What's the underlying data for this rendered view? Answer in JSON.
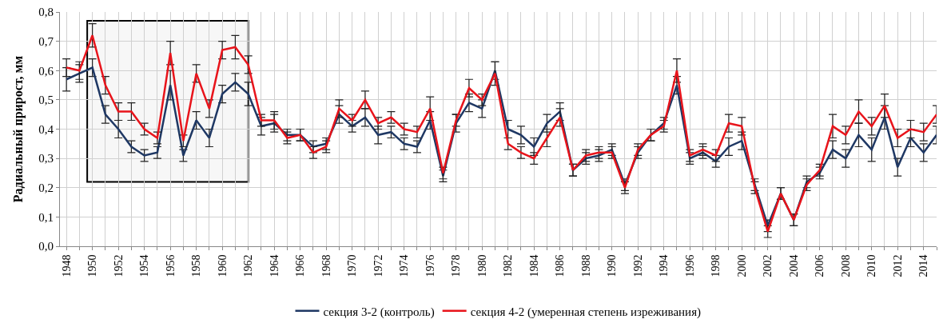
{
  "chart_data": {
    "type": "line",
    "ylabel": "Радиальный прирост, мм",
    "x": [
      1948,
      1949,
      1950,
      1951,
      1952,
      1953,
      1954,
      1955,
      1956,
      1957,
      1958,
      1959,
      1960,
      1961,
      1962,
      1963,
      1964,
      1965,
      1966,
      1967,
      1968,
      1969,
      1970,
      1971,
      1972,
      1973,
      1974,
      1975,
      1976,
      1977,
      1978,
      1979,
      1980,
      1981,
      1982,
      1983,
      1984,
      1985,
      1986,
      1987,
      1988,
      1989,
      1990,
      1991,
      1992,
      1993,
      1994,
      1995,
      1996,
      1997,
      1998,
      1999,
      2000,
      2001,
      2002,
      2003,
      2004,
      2005,
      2006,
      2007,
      2008,
      2009,
      2010,
      2011,
      2012,
      2013,
      2014,
      2015
    ],
    "series": [
      {
        "name": "секция 3-2 (контроль)",
        "color": "#1f3864",
        "values": [
          0.57,
          0.59,
          0.61,
          0.45,
          0.4,
          0.34,
          0.31,
          0.32,
          0.55,
          0.31,
          0.43,
          0.37,
          0.52,
          0.56,
          0.52,
          0.41,
          0.42,
          0.38,
          0.38,
          0.34,
          0.35,
          0.45,
          0.41,
          0.44,
          0.38,
          0.39,
          0.35,
          0.34,
          0.43,
          0.24,
          0.42,
          0.49,
          0.47,
          0.6,
          0.4,
          0.38,
          0.34,
          0.42,
          0.46,
          0.26,
          0.3,
          0.31,
          0.33,
          0.21,
          0.32,
          0.38,
          0.42,
          0.55,
          0.3,
          0.32,
          0.29,
          0.34,
          0.36,
          0.21,
          0.07,
          0.18,
          0.09,
          0.22,
          0.25,
          0.33,
          0.3,
          0.38,
          0.33,
          0.44,
          0.27,
          0.37,
          0.32,
          0.38
        ],
        "errors": [
          0.04,
          0.03,
          0.03,
          0.03,
          0.03,
          0.02,
          0.02,
          0.02,
          0.05,
          0.02,
          0.03,
          0.03,
          0.03,
          0.03,
          0.04,
          0.03,
          0.03,
          0.02,
          0.02,
          0.02,
          0.02,
          0.03,
          0.02,
          0.03,
          0.03,
          0.02,
          0.02,
          0.02,
          0.03,
          0.02,
          0.03,
          0.03,
          0.03,
          0.03,
          0.03,
          0.03,
          0.03,
          0.03,
          0.03,
          0.02,
          0.02,
          0.02,
          0.02,
          0.02,
          0.02,
          0.02,
          0.02,
          0.03,
          0.02,
          0.02,
          0.02,
          0.03,
          0.03,
          0.02,
          0.02,
          0.02,
          0.02,
          0.02,
          0.02,
          0.03,
          0.03,
          0.04,
          0.04,
          0.04,
          0.03,
          0.03,
          0.03,
          0.03
        ]
      },
      {
        "name": "секция 4-2 (умеренная степень изреживания)",
        "color": "#e8141b",
        "values": [
          0.61,
          0.6,
          0.72,
          0.55,
          0.46,
          0.46,
          0.4,
          0.37,
          0.66,
          0.36,
          0.59,
          0.47,
          0.67,
          0.68,
          0.62,
          0.43,
          0.43,
          0.37,
          0.38,
          0.32,
          0.34,
          0.47,
          0.43,
          0.5,
          0.42,
          0.44,
          0.4,
          0.39,
          0.47,
          0.25,
          0.43,
          0.54,
          0.5,
          0.59,
          0.35,
          0.32,
          0.3,
          0.37,
          0.44,
          0.26,
          0.31,
          0.32,
          0.32,
          0.2,
          0.33,
          0.38,
          0.41,
          0.6,
          0.31,
          0.33,
          0.31,
          0.42,
          0.41,
          0.2,
          0.05,
          0.18,
          0.09,
          0.21,
          0.26,
          0.41,
          0.38,
          0.46,
          0.41,
          0.48,
          0.37,
          0.4,
          0.39,
          0.45
        ],
        "errors": [
          0.03,
          0.03,
          0.04,
          0.03,
          0.03,
          0.03,
          0.02,
          0.02,
          0.04,
          0.02,
          0.03,
          0.03,
          0.03,
          0.04,
          0.03,
          0.02,
          0.03,
          0.02,
          0.02,
          0.02,
          0.02,
          0.03,
          0.02,
          0.03,
          0.02,
          0.02,
          0.02,
          0.02,
          0.04,
          0.02,
          0.02,
          0.03,
          0.02,
          0.04,
          0.02,
          0.02,
          0.02,
          0.03,
          0.03,
          0.02,
          0.02,
          0.02,
          0.02,
          0.02,
          0.02,
          0.02,
          0.02,
          0.04,
          0.02,
          0.02,
          0.02,
          0.03,
          0.03,
          0.02,
          0.02,
          0.02,
          0.02,
          0.02,
          0.02,
          0.04,
          0.03,
          0.04,
          0.03,
          0.04,
          0.03,
          0.03,
          0.03,
          0.03
        ]
      }
    ],
    "bands": [
      {
        "axis": "x",
        "from": 1949.6,
        "to": 1962,
        "color": "#000000"
      }
    ],
    "ylim": [
      0,
      0.8
    ],
    "yticks": [
      {
        "value": 0,
        "label": "0,0"
      },
      {
        "value": 0.1,
        "label": "0,1"
      },
      {
        "value": 0.2,
        "label": "0,2"
      },
      {
        "value": 0.3,
        "label": "0,3"
      },
      {
        "value": 0.4,
        "label": "0,4"
      },
      {
        "value": 0.5,
        "label": "0,5"
      },
      {
        "value": 0.6,
        "label": "0,6"
      },
      {
        "value": 0.7,
        "label": "0,7"
      },
      {
        "value": 0.8,
        "label": "0,8"
      }
    ],
    "xlim": [
      1947.5,
      2015
    ],
    "xticks": [
      1948,
      {
        "value": 1949,
        "label": null
      },
      1950,
      {
        "value": 1951,
        "label": null
      },
      1952,
      {
        "value": 1953,
        "label": null
      },
      1954,
      {
        "value": 1955,
        "label": null
      },
      1956,
      {
        "value": 1957,
        "label": null
      },
      1958,
      {
        "value": 1959,
        "label": null
      },
      1960,
      {
        "value": 1961,
        "label": null
      },
      1962,
      {
        "value": 1963,
        "label": null
      },
      1964,
      {
        "value": 1965,
        "label": null
      },
      1966,
      {
        "value": 1967,
        "label": null
      },
      1968,
      {
        "value": 1969,
        "label": null
      },
      1970,
      {
        "value": 1971,
        "label": null
      },
      1972,
      {
        "value": 1973,
        "label": null
      },
      1974,
      {
        "value": 1975,
        "label": null
      },
      1976,
      {
        "value": 1977,
        "label": null
      },
      1978,
      {
        "value": 1979,
        "label": null
      },
      1980,
      {
        "value": 1981,
        "label": null
      },
      1982,
      {
        "value": 1983,
        "label": null
      },
      1984,
      {
        "value": 1985,
        "label": null
      },
      1986,
      {
        "value": 1987,
        "label": null
      },
      1988,
      {
        "value": 1989,
        "label": null
      },
      1990,
      {
        "value": 1991,
        "label": null
      },
      1992,
      {
        "value": 1993,
        "label": null
      },
      1994,
      {
        "value": 1995,
        "label": null
      },
      1996,
      {
        "value": 1997,
        "label": null
      },
      1998,
      {
        "value": 1999,
        "label": null
      },
      2000,
      {
        "value": 2001,
        "label": null
      },
      2002,
      {
        "value": 2003,
        "label": null
      },
      2004,
      {
        "value": 2005,
        "label": null
      },
      2006,
      {
        "value": 2007,
        "label": null
      },
      2008,
      {
        "value": 2009,
        "label": null
      },
      2010,
      {
        "value": 2011,
        "label": null
      },
      2012,
      {
        "value": 2013,
        "label": null
      },
      2014,
      {
        "value": 2015,
        "label": null
      }
    ],
    "grid": true,
    "legend": "bottom",
    "line_style": "solid"
  }
}
